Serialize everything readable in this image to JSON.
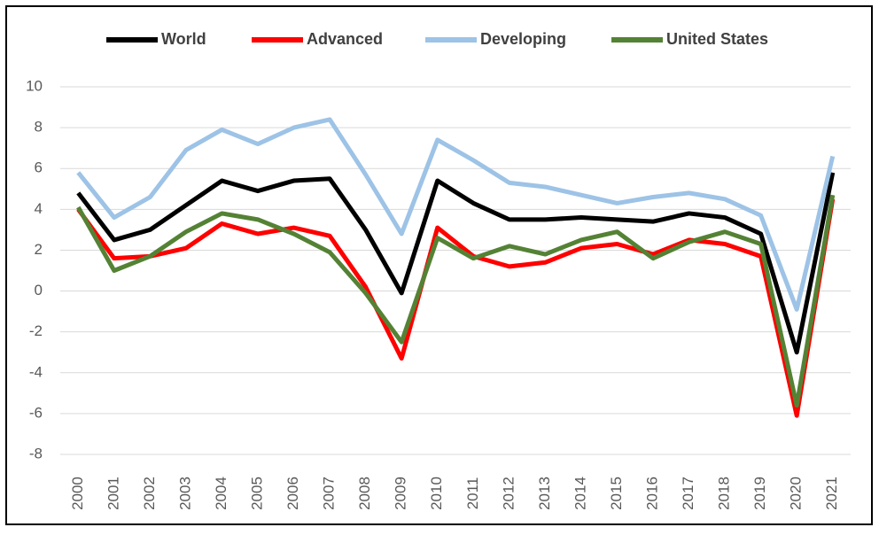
{
  "chart_data": {
    "type": "line",
    "categories": [
      "2000",
      "2001",
      "2002",
      "2003",
      "2004",
      "2005",
      "2006",
      "2007",
      "2008",
      "2009",
      "2010",
      "2011",
      "2012",
      "2013",
      "2014",
      "2015",
      "2016",
      "2017",
      "2018",
      "2019",
      "2020",
      "2021"
    ],
    "series": [
      {
        "name": "World",
        "color": "#000000",
        "values": [
          4.8,
          2.5,
          3.0,
          4.2,
          5.4,
          4.9,
          5.4,
          5.5,
          3.0,
          -0.1,
          5.4,
          4.3,
          3.5,
          3.5,
          3.6,
          3.5,
          3.4,
          3.8,
          3.6,
          2.8,
          -3.0,
          5.8
        ]
      },
      {
        "name": "Advanced",
        "color": "#ff0000",
        "values": [
          4.0,
          1.6,
          1.7,
          2.1,
          3.3,
          2.8,
          3.1,
          2.7,
          0.2,
          -3.3,
          3.1,
          1.7,
          1.2,
          1.4,
          2.1,
          2.3,
          1.8,
          2.5,
          2.3,
          1.7,
          -6.1,
          4.5
        ]
      },
      {
        "name": "Developing",
        "color": "#9dc3e6",
        "values": [
          5.8,
          3.6,
          4.6,
          6.9,
          7.9,
          7.2,
          8.0,
          8.4,
          5.7,
          2.8,
          7.4,
          6.4,
          5.3,
          5.1,
          4.7,
          4.3,
          4.6,
          4.8,
          4.5,
          3.7,
          -0.9,
          6.6
        ]
      },
      {
        "name": "United States",
        "color": "#548235",
        "values": [
          4.1,
          1.0,
          1.7,
          2.9,
          3.8,
          3.5,
          2.8,
          1.9,
          -0.1,
          -2.5,
          2.6,
          1.6,
          2.2,
          1.8,
          2.5,
          2.9,
          1.6,
          2.4,
          2.9,
          2.3,
          -5.6,
          4.7
        ]
      }
    ],
    "ylim": [
      -8,
      10
    ],
    "yticks": [
      -8,
      -6,
      -4,
      -2,
      0,
      2,
      4,
      6,
      8,
      10
    ],
    "grid": true,
    "legend": "top"
  }
}
